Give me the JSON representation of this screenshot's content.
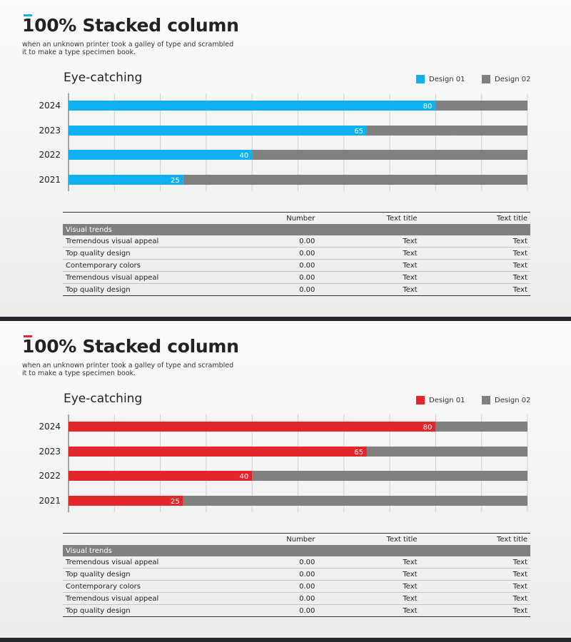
{
  "panels": [
    {
      "title": "100% Stacked column",
      "subtitle": "when an unknown printer took a galley of type and scrambled it to make a type specimen book.",
      "chart_title": "Eye-catching",
      "accent_color": "#0fb0ef",
      "secondary_color": "#808080",
      "legend": [
        "Design 01",
        "Design 02"
      ],
      "chart_data": {
        "type": "bar",
        "orientation": "horizontal",
        "stacked": "100%",
        "categories": [
          "2024",
          "2023",
          "2022",
          "2021"
        ],
        "series": [
          {
            "name": "Design 01",
            "values": [
              80,
              65,
              40,
              25
            ]
          },
          {
            "name": "Design 02",
            "values": [
              20,
              35,
              60,
              75
            ]
          }
        ],
        "xlim": [
          0,
          100
        ],
        "grid": true,
        "legend_position": "top-right",
        "data_labels": [
          "80",
          "65",
          "40",
          "25"
        ]
      },
      "table": {
        "headers": [
          "",
          "Number",
          "Text title",
          "Text title"
        ],
        "group_label": "Visual trends",
        "rows": [
          [
            "Tremendous visual appeal",
            "0.00",
            "Text",
            "Text"
          ],
          [
            "Top quality design",
            "0.00",
            "Text",
            "Text"
          ],
          [
            "Contemporary colors",
            "0.00",
            "Text",
            "Text"
          ],
          [
            "Tremendous visual appeal",
            "0.00",
            "Text",
            "Text"
          ],
          [
            "Top quality design",
            "0.00",
            "Text",
            "Text"
          ]
        ]
      }
    },
    {
      "title": "100% Stacked column",
      "subtitle": "when an unknown printer took a galley of type and scrambled it to make a type specimen book.",
      "chart_title": "Eye-catching",
      "accent_color": "#e3262b",
      "secondary_color": "#808080",
      "legend": [
        "Design 01",
        "Design 02"
      ],
      "chart_data": {
        "type": "bar",
        "orientation": "horizontal",
        "stacked": "100%",
        "categories": [
          "2024",
          "2023",
          "2022",
          "2021"
        ],
        "series": [
          {
            "name": "Design 01",
            "values": [
              80,
              65,
              40,
              25
            ]
          },
          {
            "name": "Design 02",
            "values": [
              20,
              35,
              60,
              75
            ]
          }
        ],
        "xlim": [
          0,
          100
        ],
        "grid": true,
        "legend_position": "top-right",
        "data_labels": [
          "80",
          "65",
          "40",
          "25"
        ]
      },
      "table": {
        "headers": [
          "",
          "Number",
          "Text title",
          "Text title"
        ],
        "group_label": "Visual trends",
        "rows": [
          [
            "Tremendous visual appeal",
            "0.00",
            "Text",
            "Text"
          ],
          [
            "Top quality design",
            "0.00",
            "Text",
            "Text"
          ],
          [
            "Contemporary colors",
            "0.00",
            "Text",
            "Text"
          ],
          [
            "Tremendous visual appeal",
            "0.00",
            "Text",
            "Text"
          ],
          [
            "Top quality design",
            "0.00",
            "Text",
            "Text"
          ]
        ]
      }
    }
  ]
}
